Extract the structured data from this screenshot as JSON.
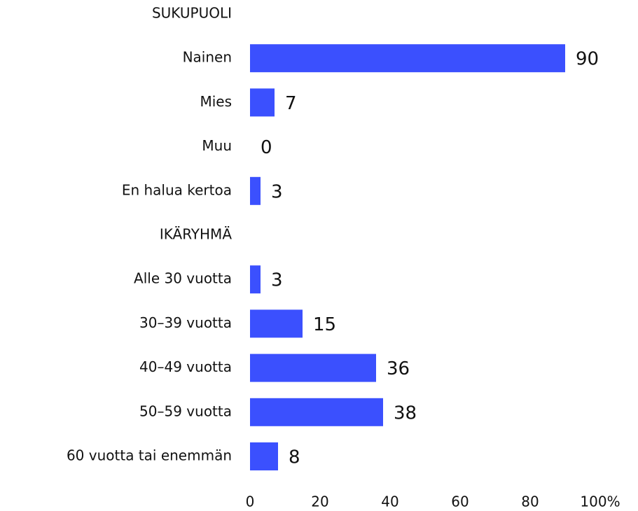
{
  "chart_data": {
    "type": "bar",
    "orientation": "horizontal",
    "categories": [
      "SUKUPUOLI",
      "Nainen",
      "Mies",
      "Muu",
      "En halua kertoa",
      "IKÄRYHMÄ",
      "Alle 30 vuotta",
      "30–39 vuotta",
      "40–49 vuotta",
      "50–59 vuotta",
      "60 vuotta tai enemmän"
    ],
    "values": [
      null,
      90,
      7,
      0,
      3,
      null,
      3,
      15,
      36,
      38,
      8
    ],
    "color": "#3b50fe",
    "xlim": [
      0,
      100
    ],
    "xticks": [
      0,
      20,
      40,
      60,
      80,
      {
        "value": 100,
        "label": "100%"
      }
    ],
    "grid": false
  }
}
